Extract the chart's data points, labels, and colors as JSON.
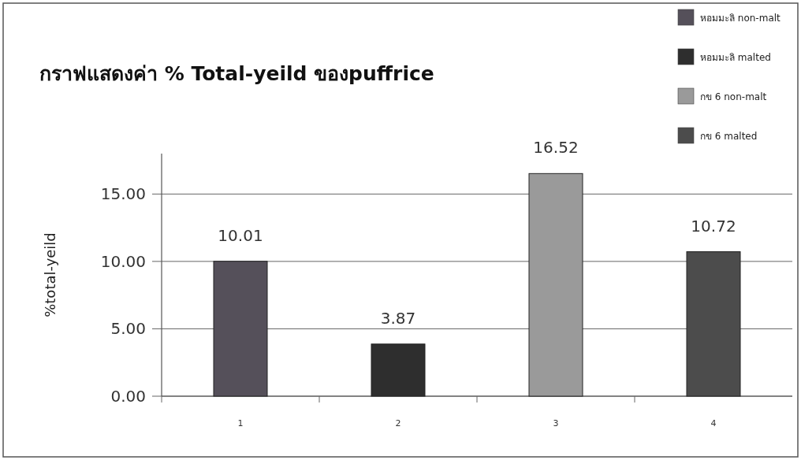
{
  "chart_data": {
    "type": "bar",
    "title": "กราฟแสดงค่า % Total-yeild ของpuffrice",
    "ylabel": "%total-yeild",
    "categories": [
      "1",
      "2",
      "3",
      "4"
    ],
    "series": [
      {
        "name": "หอมมะลิ non-malt",
        "color": "#55505a",
        "values": [
          10.01,
          null,
          null,
          null
        ]
      },
      {
        "name": "หอมมะลิ malted",
        "color": "#2e2e2e",
        "values": [
          null,
          3.87,
          null,
          null
        ]
      },
      {
        "name": "กข 6 non-malt",
        "color": "#9a9a9a",
        "values": [
          null,
          null,
          16.52,
          null
        ]
      },
      {
        "name": "กข 6 malted",
        "color": "#4c4c4c",
        "values": [
          null,
          null,
          null,
          10.72
        ]
      }
    ],
    "ylim": [
      0,
      18
    ],
    "yticks": [
      {
        "value": 0,
        "label": "0.00"
      },
      {
        "value": 5,
        "label": "5.00"
      },
      {
        "value": 10,
        "label": "10.00"
      },
      {
        "value": 15,
        "label": "15.00"
      }
    ],
    "grid": "y",
    "legend": "top right",
    "data_labels": true
  }
}
